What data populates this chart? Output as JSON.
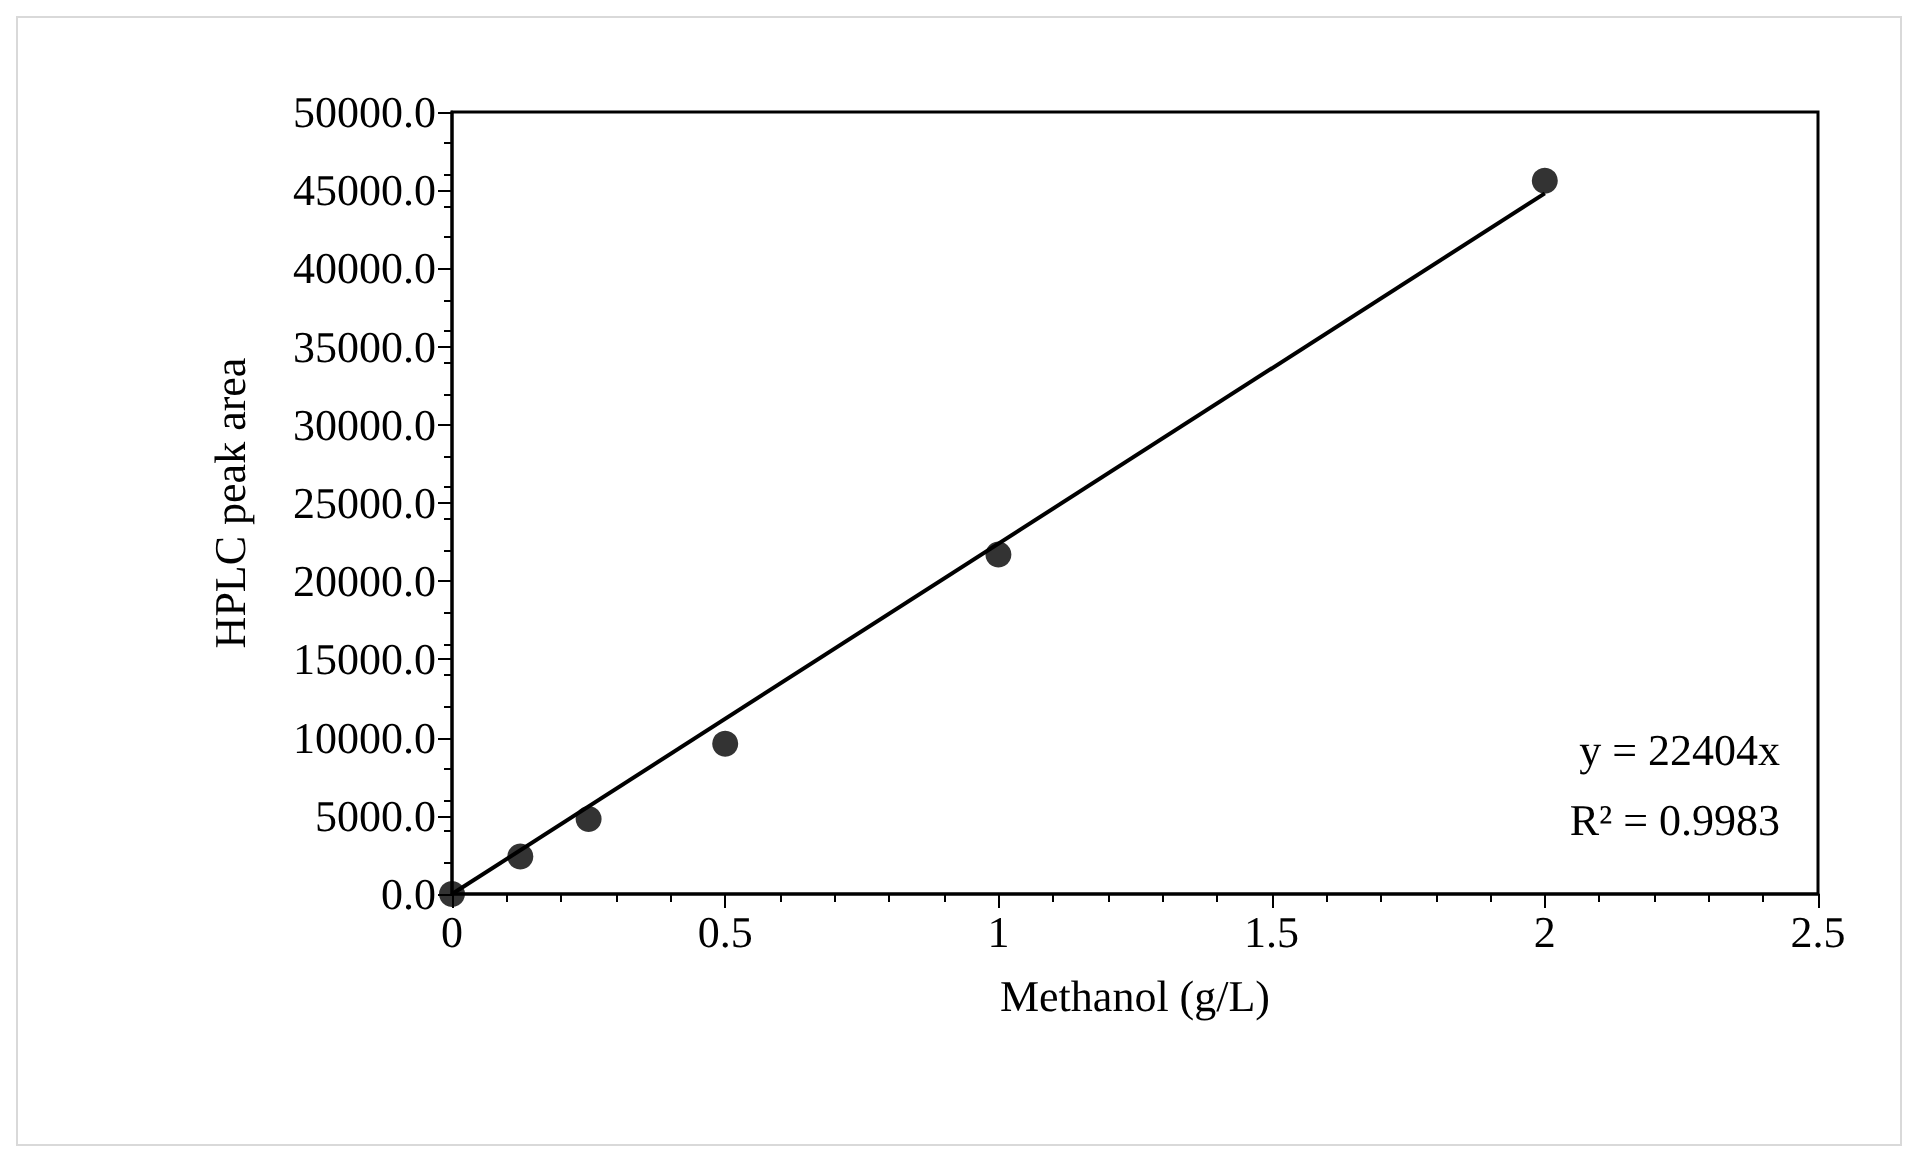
{
  "chart_data": {
    "type": "scatter",
    "xlabel": "Methanol (g/L)",
    "ylabel": "HPLC peak area",
    "x": [
      0,
      0.125,
      0.25,
      0.5,
      1,
      2
    ],
    "series": [
      {
        "color": "#000000",
        "marker": "circle",
        "values": [
          0,
          2400,
          4800,
          9600,
          21700,
          45600
        ]
      },
      {
        "type": "line",
        "color": "#000000",
        "marker": "none",
        "x": [
          0,
          2
        ],
        "values": [
          0,
          44800
        ]
      }
    ],
    "xlim": [
      0,
      2.5
    ],
    "xticks": [
      0,
      0.5,
      1,
      1.5,
      2,
      2.5
    ],
    "ylim": [
      0,
      50000
    ],
    "yticks": [
      {
        "value": 0,
        "label": "0.0"
      },
      {
        "value": 5000,
        "label": "5000.0"
      },
      {
        "value": 10000,
        "label": "10000.0"
      },
      {
        "value": 15000,
        "label": "15000.0"
      },
      {
        "value": 20000,
        "label": "20000.0"
      },
      {
        "value": 25000,
        "label": "25000.0"
      },
      {
        "value": 30000,
        "label": "30000.0"
      },
      {
        "value": 35000,
        "label": "35000.0"
      },
      {
        "value": 40000,
        "label": "40000.0"
      },
      {
        "value": 45000,
        "label": "45000.0"
      },
      {
        "value": 50000,
        "label": "50000.0"
      }
    ],
    "annotations": [
      "y = 22404x",
      "R² = 0.9983"
    ],
    "grid": false
  }
}
